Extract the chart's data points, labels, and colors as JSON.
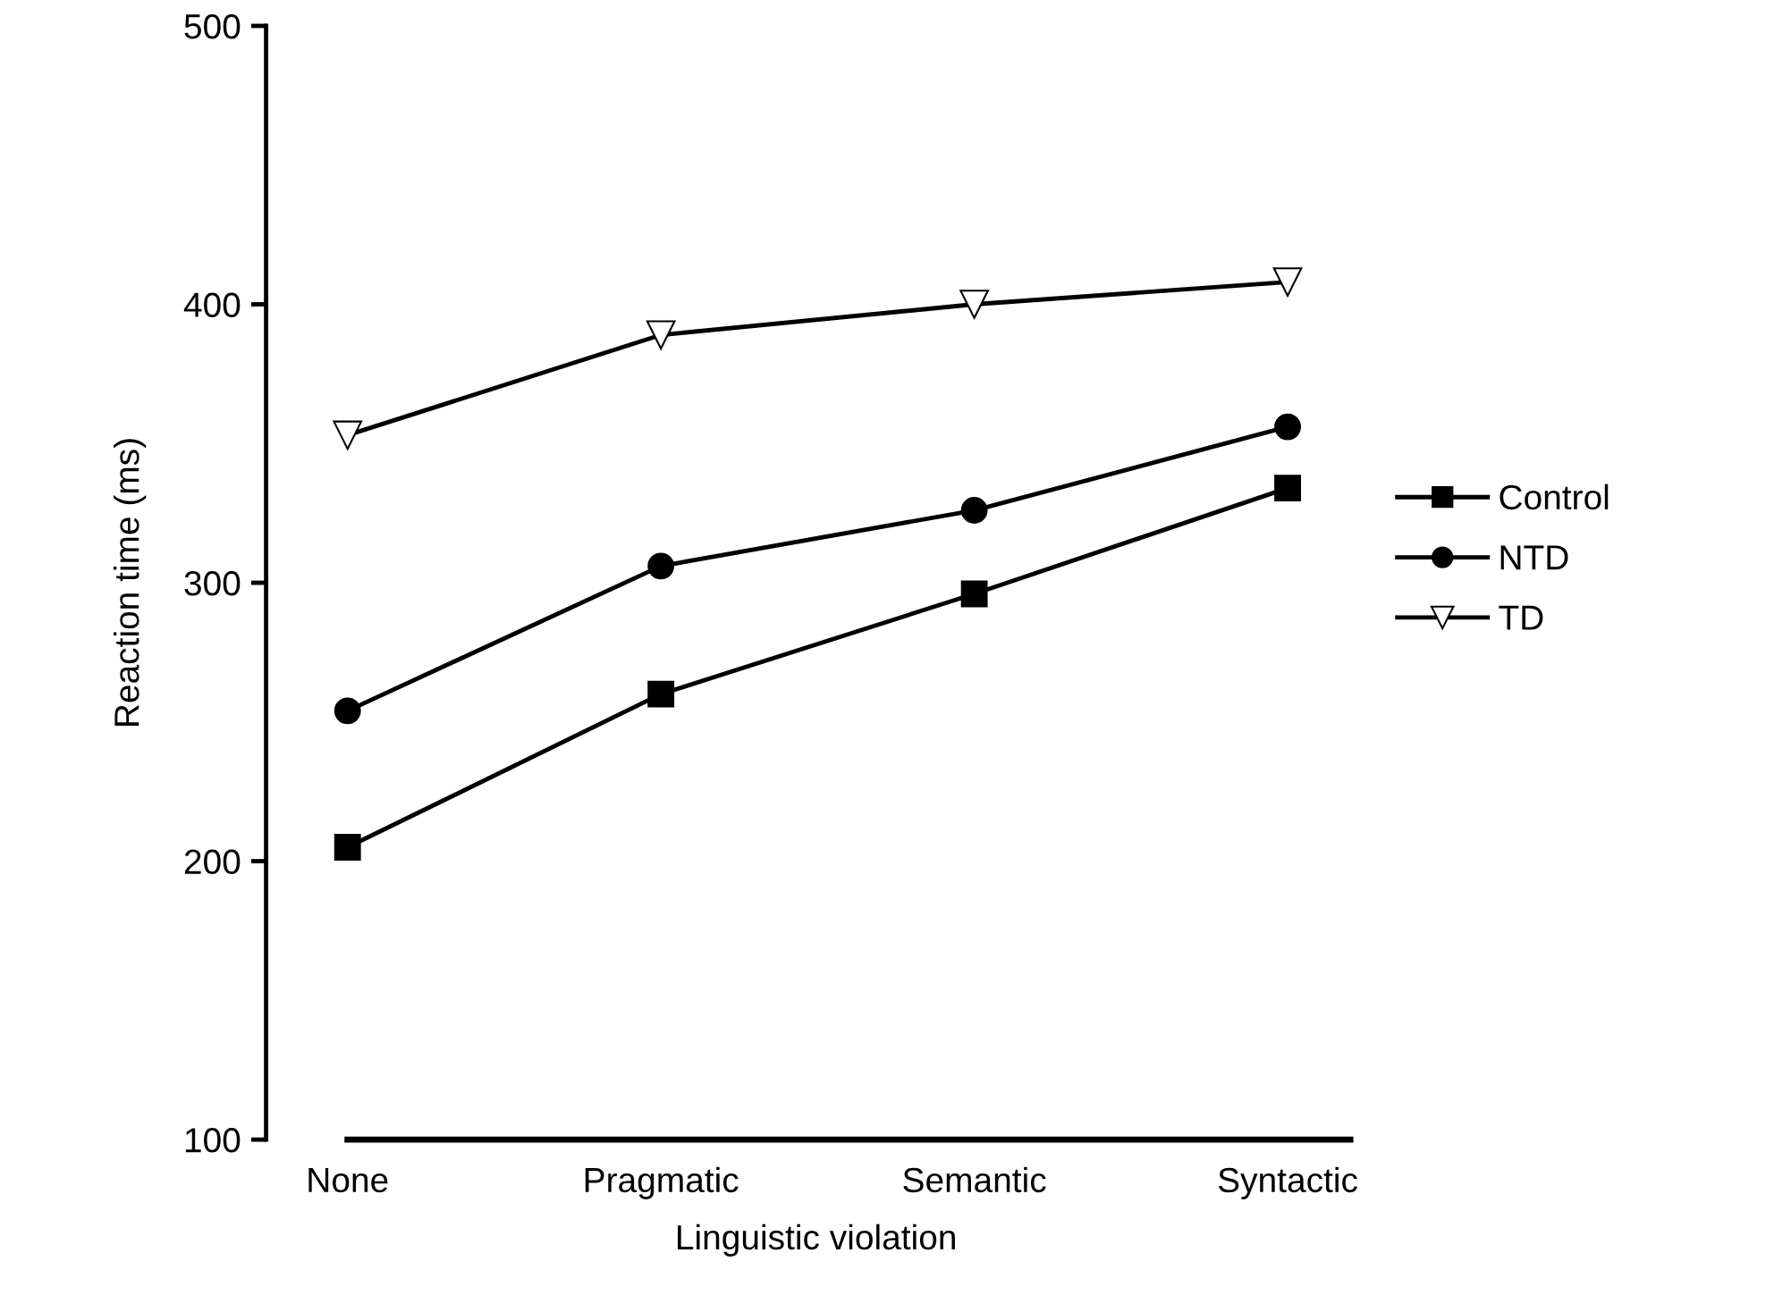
{
  "chart_data": {
    "type": "line",
    "xlabel": "Linguistic violation",
    "ylabel": "Reaction time (ms)",
    "categories": [
      "None",
      "Pragmatic",
      "Semantic",
      "Syntactic"
    ],
    "series": [
      {
        "name": "Control",
        "color": "#000000",
        "marker": "square",
        "values": [
          205,
          260,
          296,
          334
        ]
      },
      {
        "name": "NTD",
        "color": "#000000",
        "marker": "circle",
        "values": [
          254,
          306,
          326,
          356
        ]
      },
      {
        "name": "TD",
        "color": "#000000",
        "marker": "triangle",
        "values": [
          353,
          389,
          400,
          408
        ]
      }
    ],
    "ylim": [
      100,
      500
    ],
    "yticks": [
      100,
      200,
      300,
      400,
      500
    ],
    "grid": false,
    "legend": "right",
    "line_style": "solid"
  }
}
